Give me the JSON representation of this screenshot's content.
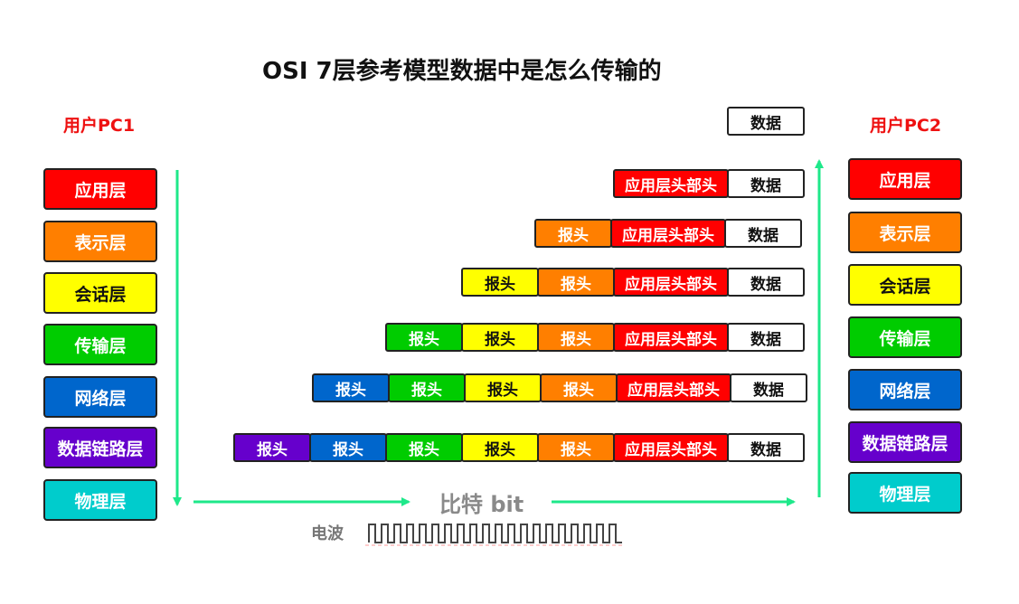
{
  "title": "OSI 7层参考模型数据中是怎么传输的",
  "pc1": {
    "label": "用户PC1"
  },
  "pc2": {
    "label": "用户PC2"
  },
  "layers": [
    {
      "name": "应用层",
      "color": "#ff0000",
      "text_color": "#ffffff"
    },
    {
      "name": "表示层",
      "color": "#ff7f00",
      "text_color": "#ffffff"
    },
    {
      "name": "会话层",
      "color": "#ffff00",
      "text_color": "#111111"
    },
    {
      "name": "传输层",
      "color": "#00cc00",
      "text_color": "#ffffff"
    },
    {
      "name": "网络层",
      "color": "#0066cc",
      "text_color": "#ffffff"
    },
    {
      "name": "数据链路层",
      "color": "#6600cc",
      "text_color": "#ffffff"
    },
    {
      "name": "物理层",
      "color": "#00cccc",
      "text_color": "#ffffff"
    }
  ],
  "top_data_label": "数据",
  "packets": [
    [
      {
        "label": "应用层头部头",
        "color": "#ff0000",
        "text": "#ffffff"
      },
      {
        "label": "数据",
        "color": "#ffffff",
        "text": "#111111"
      }
    ],
    [
      {
        "label": "报头",
        "color": "#ff7f00",
        "text": "#ffffff"
      },
      {
        "label": "应用层头部头",
        "color": "#ff0000",
        "text": "#ffffff"
      },
      {
        "label": "数据",
        "color": "#ffffff",
        "text": "#111111"
      }
    ],
    [
      {
        "label": "报头",
        "color": "#ffff00",
        "text": "#111111"
      },
      {
        "label": "报头",
        "color": "#ff7f00",
        "text": "#ffffff"
      },
      {
        "label": "应用层头部头",
        "color": "#ff0000",
        "text": "#ffffff"
      },
      {
        "label": "数据",
        "color": "#ffffff",
        "text": "#111111"
      }
    ],
    [
      {
        "label": "报头",
        "color": "#00cc00",
        "text": "#ffffff"
      },
      {
        "label": "报头",
        "color": "#ffff00",
        "text": "#111111"
      },
      {
        "label": "报头",
        "color": "#ff7f00",
        "text": "#ffffff"
      },
      {
        "label": "应用层头部头",
        "color": "#ff0000",
        "text": "#ffffff"
      },
      {
        "label": "数据",
        "color": "#ffffff",
        "text": "#111111"
      }
    ],
    [
      {
        "label": "报头",
        "color": "#0066cc",
        "text": "#ffffff"
      },
      {
        "label": "报头",
        "color": "#00cc00",
        "text": "#ffffff"
      },
      {
        "label": "报头",
        "color": "#ffff00",
        "text": "#111111"
      },
      {
        "label": "报头",
        "color": "#ff7f00",
        "text": "#ffffff"
      },
      {
        "label": "应用层头部头",
        "color": "#ff0000",
        "text": "#ffffff"
      },
      {
        "label": "数据",
        "color": "#ffffff",
        "text": "#111111"
      }
    ],
    [
      {
        "label": "报头",
        "color": "#6600cc",
        "text": "#ffffff"
      },
      {
        "label": "报头",
        "color": "#0066cc",
        "text": "#ffffff"
      },
      {
        "label": "报头",
        "color": "#00cc00",
        "text": "#ffffff"
      },
      {
        "label": "报头",
        "color": "#ffff00",
        "text": "#111111"
      },
      {
        "label": "报头",
        "color": "#ff7f00",
        "text": "#ffffff"
      },
      {
        "label": "应用层头部头",
        "color": "#ff0000",
        "text": "#ffffff"
      },
      {
        "label": "数据",
        "color": "#ffffff",
        "text": "#111111"
      }
    ]
  ],
  "bit_label": "比特 bit",
  "wave_label": "电波",
  "arrow_color": "#1ee88a"
}
